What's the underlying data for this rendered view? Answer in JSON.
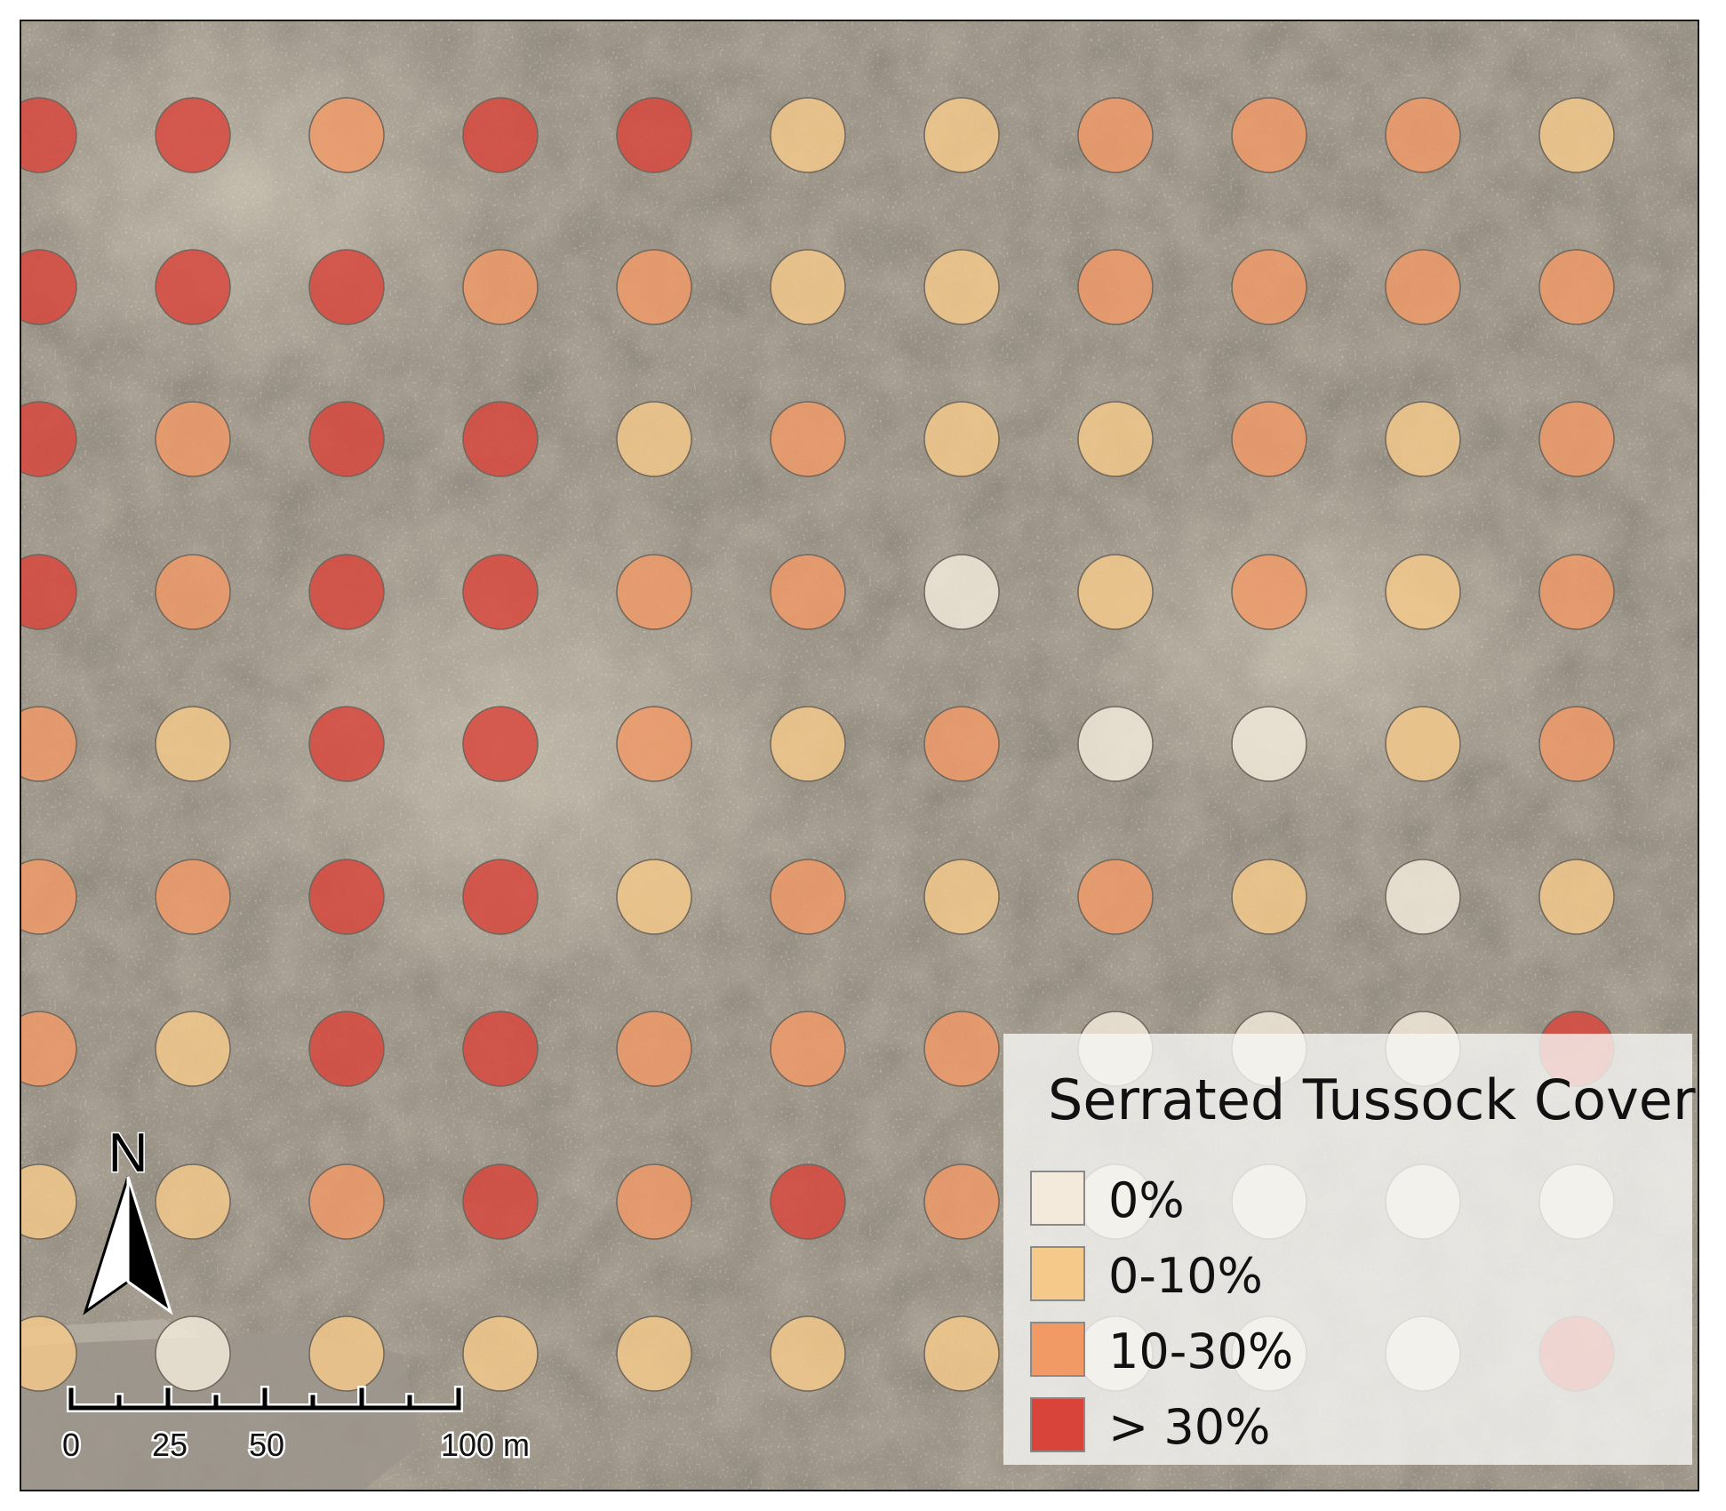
{
  "map": {
    "legend": {
      "title": "Serrated Tussock Cover",
      "classes": [
        {
          "label": "0%",
          "color": "#f3eadb"
        },
        {
          "label": "0-10%",
          "color": "#f5c98a"
        },
        {
          "label": "10-30%",
          "color": "#f29a66"
        },
        {
          "label": "> 30%",
          "color": "#d9443a"
        }
      ]
    },
    "north_arrow": {
      "label": "N"
    },
    "scale_bar": {
      "unit": "m",
      "ticks": [
        "0",
        "25",
        "50",
        "100 m"
      ]
    },
    "plot_grid": {
      "rows": [
        [
          3,
          3,
          2,
          3,
          3,
          1,
          1,
          2,
          2,
          2,
          1
        ],
        [
          3,
          3,
          3,
          2,
          2,
          1,
          1,
          2,
          2,
          2,
          2
        ],
        [
          3,
          2,
          3,
          3,
          1,
          2,
          1,
          1,
          2,
          1,
          2
        ],
        [
          3,
          2,
          3,
          3,
          2,
          2,
          0,
          1,
          2,
          1,
          2
        ],
        [
          2,
          1,
          3,
          3,
          2,
          1,
          2,
          0,
          0,
          1,
          2
        ],
        [
          2,
          2,
          3,
          3,
          1,
          2,
          1,
          2,
          1,
          0,
          1
        ],
        [
          2,
          1,
          3,
          3,
          2,
          2,
          2,
          null,
          null,
          null,
          null
        ],
        [
          1,
          1,
          2,
          3,
          2,
          3,
          2,
          null,
          null,
          null,
          null
        ],
        [
          1,
          0,
          1,
          1,
          1,
          1,
          1,
          null,
          null,
          null,
          null
        ]
      ],
      "legend_overlap_row_classes": [
        [
          null,
          null,
          null,
          null,
          null,
          null,
          null,
          0,
          0,
          0,
          3
        ],
        [
          null,
          null,
          null,
          null,
          null,
          null,
          null,
          0,
          0,
          0,
          0
        ],
        [
          null,
          null,
          null,
          null,
          null,
          null,
          null,
          0,
          0,
          0,
          3
        ]
      ]
    }
  }
}
